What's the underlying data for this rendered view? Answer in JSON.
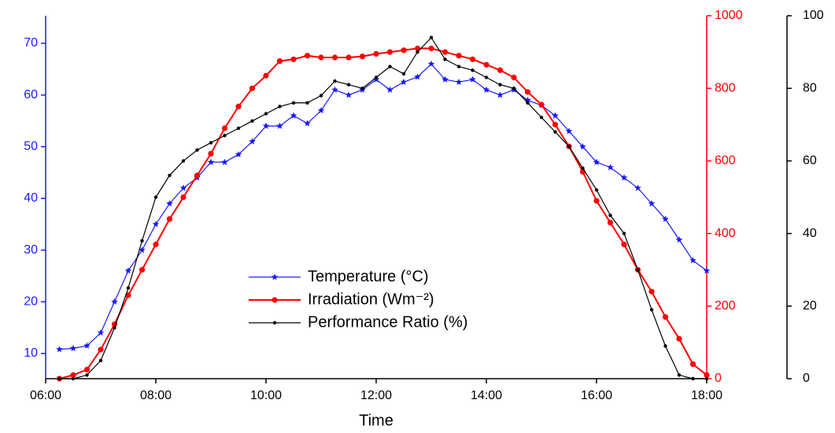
{
  "chart_data": {
    "type": "line",
    "x_label": "Time",
    "x": [
      "06:15",
      "06:30",
      "06:45",
      "07:00",
      "07:15",
      "07:30",
      "07:45",
      "08:00",
      "08:15",
      "08:30",
      "08:45",
      "09:00",
      "09:15",
      "09:30",
      "09:45",
      "10:00",
      "10:15",
      "10:30",
      "10:45",
      "11:00",
      "11:15",
      "11:30",
      "11:45",
      "12:00",
      "12:15",
      "12:30",
      "12:45",
      "13:00",
      "13:15",
      "13:30",
      "13:45",
      "14:00",
      "14:15",
      "14:30",
      "14:45",
      "15:00",
      "15:15",
      "15:30",
      "15:45",
      "16:00",
      "16:15",
      "16:30",
      "16:45",
      "17:00",
      "17:15",
      "17:30",
      "17:45",
      "18:00"
    ],
    "xlim": [
      6,
      18
    ],
    "xticks": [
      {
        "value": 6,
        "label": "06:00"
      },
      {
        "value": 8,
        "label": "08:00"
      },
      {
        "value": 10,
        "label": "10:00"
      },
      {
        "value": 12,
        "label": "12:00"
      },
      {
        "value": 14,
        "label": "14:00"
      },
      {
        "value": 16,
        "label": "16:00"
      },
      {
        "value": 18,
        "label": "18:00"
      }
    ],
    "ylim": [
      5.13,
      75.33
    ],
    "yticks": [
      10,
      20,
      30,
      40,
      50,
      60,
      70
    ],
    "y_color": "#1a1aff",
    "y2lim": [
      0,
      1000
    ],
    "y2ticks": [
      0,
      200,
      400,
      600,
      800,
      1000
    ],
    "y2_color": "#ff0000",
    "y3lim": [
      0,
      100
    ],
    "y3ticks": [
      0,
      20,
      40,
      60,
      80,
      100
    ],
    "y3_color": "#000000",
    "series": [
      {
        "name": "Temperature (°C)",
        "color": "#1a1aff",
        "axis": "y",
        "marker": "star",
        "values": [
          10.8,
          11,
          11.5,
          14,
          20,
          26,
          30,
          35,
          39,
          42,
          44,
          47,
          47,
          48.5,
          51,
          54,
          54,
          56,
          54.5,
          57,
          61,
          60,
          61,
          63,
          61,
          62.5,
          63.5,
          66,
          63,
          62.5,
          63,
          61,
          60,
          61,
          59,
          58,
          56,
          53,
          50,
          47,
          46,
          44,
          42,
          39,
          36,
          32,
          28,
          26
        ]
      },
      {
        "name": "Irradiation (Wm⁻²)",
        "color": "#ff0000",
        "axis": "y2",
        "marker": "circle",
        "values": [
          0,
          10,
          25,
          80,
          150,
          230,
          300,
          370,
          440,
          500,
          560,
          620,
          690,
          750,
          800,
          835,
          875,
          880,
          890,
          885,
          885,
          885,
          888,
          895,
          900,
          905,
          910,
          910,
          900,
          890,
          880,
          865,
          850,
          830,
          790,
          755,
          700,
          640,
          570,
          490,
          430,
          370,
          300,
          240,
          170,
          110,
          40,
          10
        ]
      },
      {
        "name": "Performance Ratio (%)",
        "color": "#000000",
        "axis": "y3",
        "marker": "dot",
        "values": [
          0,
          0,
          1,
          5,
          14,
          25,
          38,
          50,
          56,
          60,
          63,
          65,
          67,
          69,
          71,
          73,
          75,
          76,
          76,
          78,
          82,
          81,
          80,
          83,
          86,
          84,
          90,
          94,
          88,
          86,
          85,
          83,
          81,
          80,
          76,
          72,
          68,
          64,
          58,
          52,
          45,
          40,
          30,
          19,
          9,
          1,
          0,
          0
        ]
      }
    ]
  }
}
